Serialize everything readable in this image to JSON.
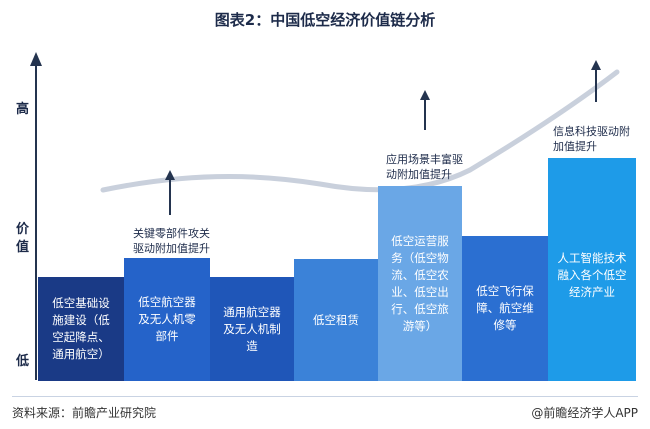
{
  "title": "图表2：中国低空经济价值链分析",
  "y_axis": {
    "high": "高",
    "value_line1": "价",
    "value_line2": "值",
    "low": "低"
  },
  "bars": [
    {
      "label": "低空基础设\n施建设（低\n空起降点、\n通用航空）",
      "color": "#1a3a86"
    },
    {
      "label": "低空航空器\n及无人机零\n部件",
      "color": "#2563c9"
    },
    {
      "label": "通用航空器\n及无人机制\n造",
      "color": "#1f56b8"
    },
    {
      "label": "低空租赁",
      "color": "#3b82d8"
    },
    {
      "label": "低空运营服\n务（低空物\n流、低空农\n业、低空出\n行、低空旅\n游等）",
      "color": "#6aa7e6"
    },
    {
      "label": "低空飞行保\n障、航空维\n修等",
      "color": "#2b6fd1"
    },
    {
      "label": "人工智能技术\n融入各个低空\n经济产业",
      "color": "#1e9be8"
    }
  ],
  "annotations": {
    "a1": "关键零部件攻关\n驱动附加值提升",
    "a2": "应用场景丰富驱\n动附加值提升",
    "a3": "信息科技驱动附\n加值提升"
  },
  "watermark": "前瞻产业研究院",
  "footer": {
    "source": "资料来源：前瞻产业研究院",
    "brand": "@前瞻经济学人APP"
  },
  "colors": {
    "curve": "#c9d0dc",
    "arrow": "#24344f",
    "axis": "#24344f"
  }
}
